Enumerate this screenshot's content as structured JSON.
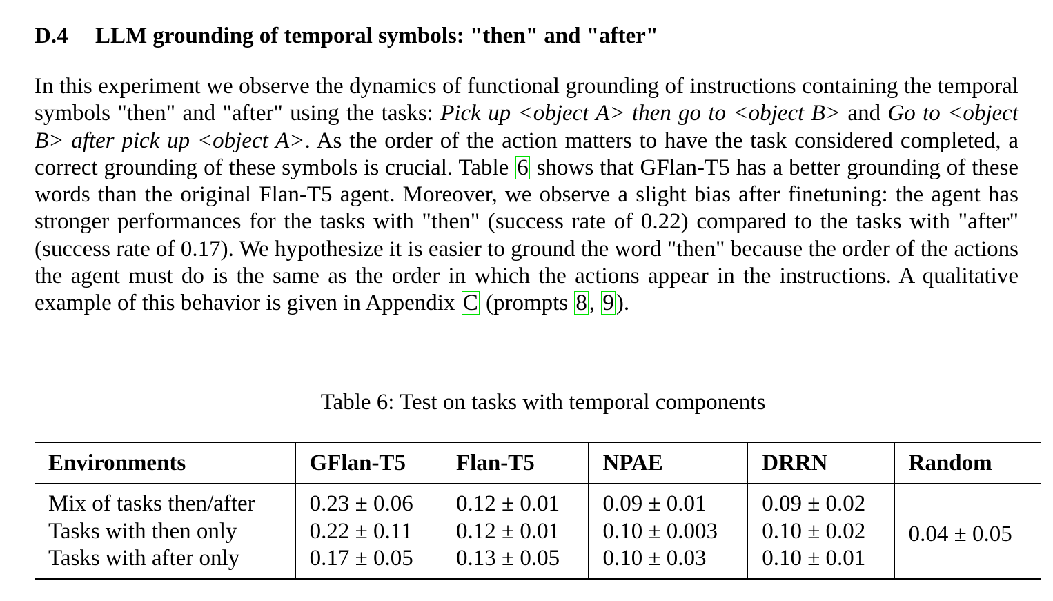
{
  "section": {
    "number": "D.4",
    "title": "LLM grounding of temporal symbols: \"then\" and \"after\""
  },
  "paragraph": {
    "t1": "In this experiment we observe the dynamics of functional grounding of instructions containing the temporal symbols \"then\" and \"after\" using the tasks: ",
    "task1": "Pick up <object A> then go to <object B>",
    "t2": " and ",
    "task2": "Go to <object B> after pick up <object A>",
    "t3": ". As the order of the action matters to have the task considered completed, a correct grounding of these symbols is crucial. Table ",
    "ref_table": "6",
    "t4": " shows that GFlan-T5 has a better grounding of these words than the original Flan-T5 agent. Moreover, we observe a slight bias after finetuning: the agent has stronger performances for the tasks with \"then\" (success rate of 0.22) compared to the tasks with \"after\" (success rate of 0.17). We hypothesize it is easier to ground the word \"then\" because the order of the actions the agent must do is the same as the order in which the actions appear in the instructions. A qualitative example of this behavior is given in Appendix ",
    "ref_appendix": "C",
    "t5": " (prompts ",
    "ref_prompt1": "8",
    "t6": ", ",
    "ref_prompt2": "9",
    "t7": ")."
  },
  "table": {
    "caption": "Table 6: Test on tasks with temporal components",
    "headers": [
      "Environments",
      "GFlan-T5",
      "Flan-T5",
      "NPAE",
      "DRRN",
      "Random"
    ],
    "rows": [
      [
        "Mix of tasks then/after",
        "0.23 ± 0.06",
        "0.12 ± 0.01",
        "0.09 ± 0.01",
        "0.09 ± 0.02"
      ],
      [
        "Tasks with then only",
        "0.22 ± 0.11",
        "0.12 ± 0.01",
        "0.10 ± 0.003",
        "0.10 ± 0.02"
      ],
      [
        "Tasks with after only",
        "0.17 ± 0.05",
        "0.13 ± 0.05",
        "0.10 ± 0.03",
        "0.10 ± 0.01"
      ]
    ],
    "random_value": "0.04 ± 0.05"
  }
}
